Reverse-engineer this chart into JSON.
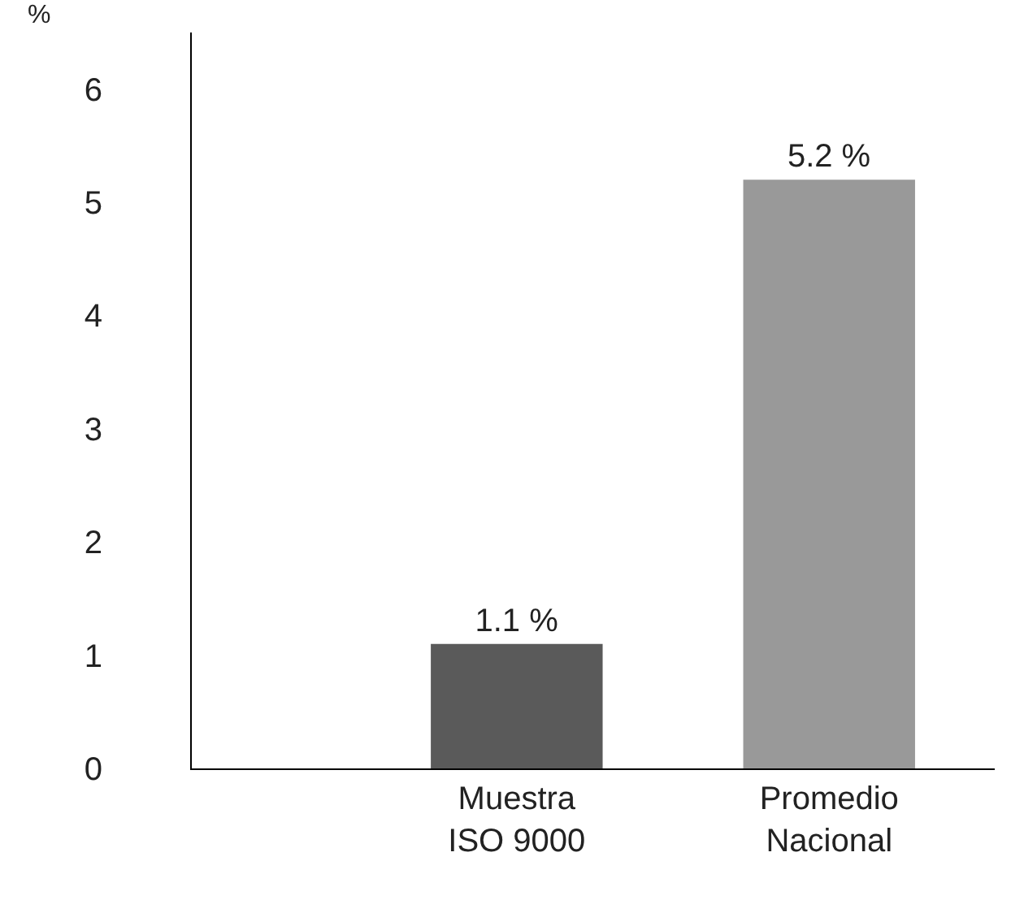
{
  "chart_data": {
    "type": "bar",
    "ylabel": "%",
    "categories": [
      "Muestra\nISO 9000",
      "Promedio\nNacional"
    ],
    "values": [
      1.1,
      5.2
    ],
    "colors": [
      "#5a5a5a",
      "#999999"
    ],
    "value_labels": [
      "1.1 %",
      "5.2 %"
    ],
    "ylim": [
      0,
      6.5
    ],
    "yticks": [
      0,
      1,
      2,
      3,
      4,
      5,
      6
    ],
    "grid": false,
    "legend": false
  }
}
